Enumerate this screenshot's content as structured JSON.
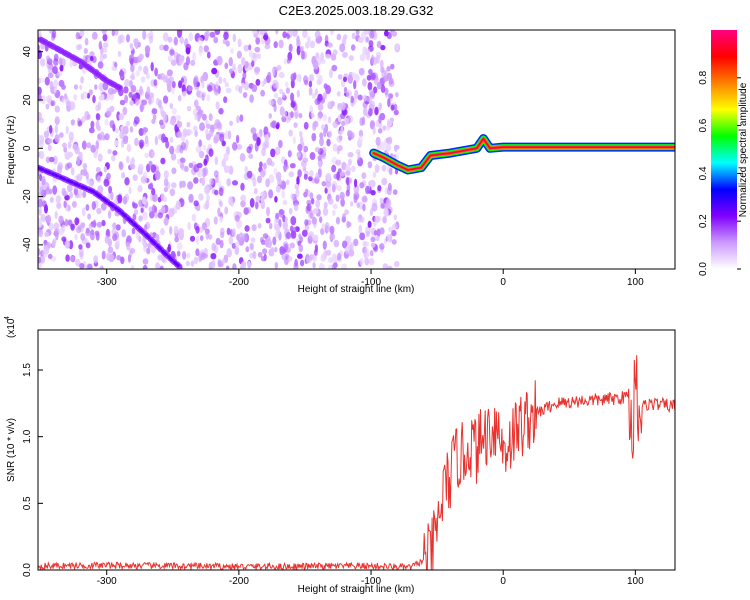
{
  "chart_data": [
    {
      "type": "heatmap",
      "title": "C2E3.2025.003.18.29.G32",
      "xlabel": "Height of straight line (km)",
      "ylabel": "Frequency (Hz)",
      "xlim": [
        -352,
        130
      ],
      "ylim": [
        -50,
        49
      ],
      "x_ticks": [
        -300,
        -200,
        -100,
        0,
        100
      ],
      "y_ticks": [
        -40,
        -20,
        0,
        20,
        40
      ],
      "colorbar": {
        "label": "Normalized spectral amplitude",
        "range": [
          0,
          1
        ],
        "ticks": [
          "0.0",
          "0.2",
          "0.4",
          "0.6",
          "0.8"
        ],
        "colors": [
          "#ffffff",
          "#cc99ff",
          "#7f00ff",
          "#0000ff",
          "#00ffff",
          "#00ff00",
          "#ffff00",
          "#ff8000",
          "#ff0000",
          "#ff0080"
        ]
      },
      "noise_region_km": [
        -352,
        -80
      ],
      "features": [
        {
          "name": "upper-oblique-trace",
          "x": [
            -350,
            -340,
            -320,
            -300,
            -290
          ],
          "y": [
            45,
            42,
            36,
            28,
            25
          ],
          "amplitude": 0.2
        },
        {
          "name": "lower-oblique-trace",
          "x": [
            -352,
            -335,
            -310,
            -290,
            -270,
            -255,
            -245
          ],
          "y": [
            -8,
            -12,
            -18,
            -26,
            -36,
            -44,
            -49
          ],
          "amplitude": 0.25
        },
        {
          "name": "central-line",
          "x": [
            -98,
            -90,
            -80,
            -72,
            -62,
            -55,
            -40,
            -30,
            -20,
            -15,
            -10,
            0,
            50,
            95,
            100,
            130
          ],
          "y": [
            -2,
            -4,
            -7,
            -9,
            -8,
            -3,
            -2,
            -1,
            0,
            4,
            0,
            0.5,
            0.5,
            0.5,
            0.5,
            0.5
          ],
          "amplitude": 0.95
        }
      ]
    },
    {
      "type": "line",
      "xlabel": "Height of straight line (km)",
      "ylabel": "SNR (10 * v/v)",
      "y_scale_label": "(x10",
      "y_scale_exp": "4",
      "xlim": [
        -352,
        130
      ],
      "ylim": [
        0,
        18000
      ],
      "x_ticks": [
        -300,
        -200,
        -100,
        0,
        100
      ],
      "y_ticks": [
        0,
        5000,
        10000,
        15000
      ],
      "y_tick_labels": [
        "0.0",
        "0.5",
        "1.0",
        "1.5"
      ],
      "color": "#e8322e",
      "series": [
        {
          "x": [
            -352,
            -300,
            -200,
            -100,
            -70,
            -55,
            -50,
            -45,
            -40,
            -35,
            -30,
            -25,
            -20,
            -15,
            -10,
            -5,
            0,
            10,
            20,
            30,
            40,
            60,
            80,
            95,
            98,
            100,
            102,
            110,
            130
          ],
          "y": [
            300,
            350,
            250,
            300,
            200,
            1000,
            3000,
            6000,
            7000,
            8500,
            8500,
            9500,
            9000,
            10000,
            10500,
            11000,
            9000,
            10500,
            11500,
            12000,
            12500,
            12700,
            12800,
            13000,
            9000,
            17000,
            12000,
            12500,
            12300
          ]
        }
      ]
    }
  ]
}
